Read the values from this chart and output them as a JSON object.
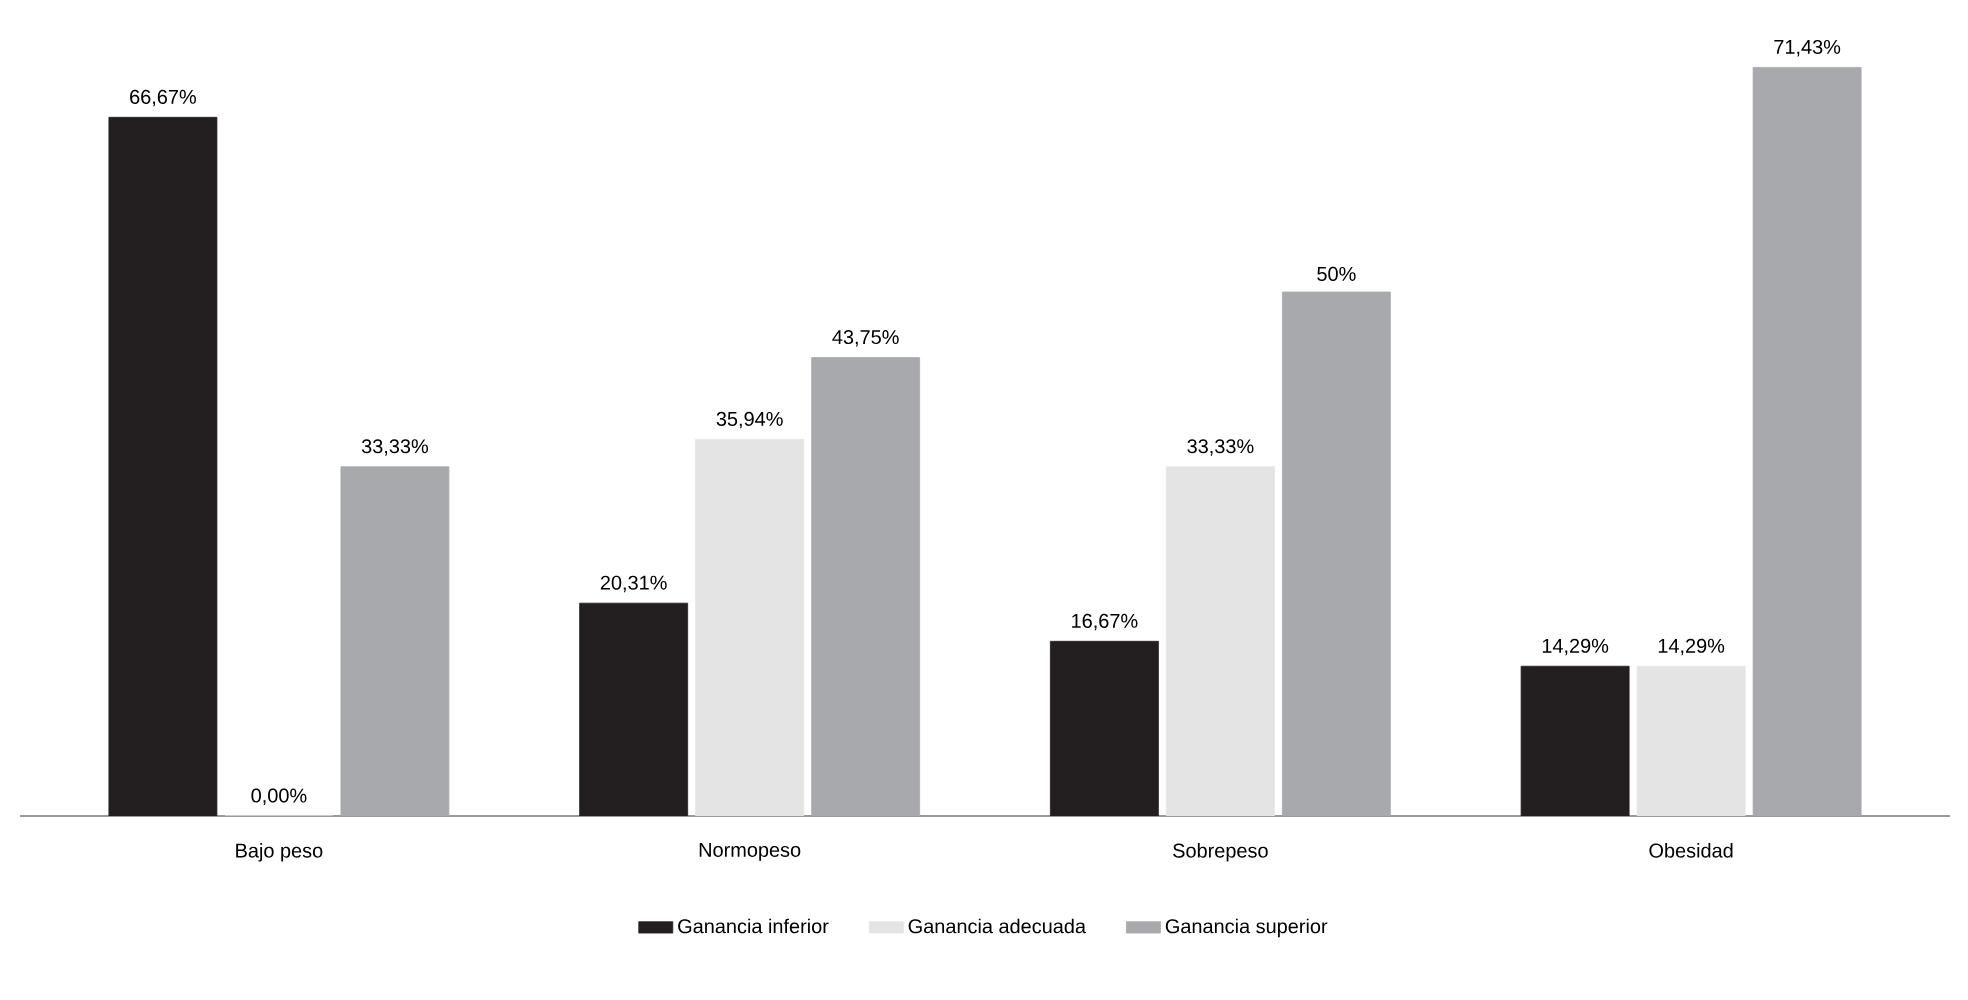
{
  "chart_data": {
    "type": "bar",
    "categories": [
      "Bajo peso",
      "Normopeso",
      "Sobrepeso",
      "Obesidad"
    ],
    "series": [
      {
        "name": "Ganancia inferior",
        "color": "#231f20",
        "values": [
          66.67,
          20.31,
          16.67,
          14.29
        ],
        "value_labels": [
          "66,67%",
          "20,31%",
          "16,67%",
          "14,29%"
        ]
      },
      {
        "name": "Ganancia adecuada",
        "color": "#e4e4e4",
        "values": [
          0.0,
          35.94,
          33.33,
          14.29
        ],
        "value_labels": [
          "0,00%",
          "35,94%",
          "33,33%",
          "14,29%"
        ]
      },
      {
        "name": "Ganancia superior",
        "color": "#a7a9ac",
        "values": [
          33.33,
          43.75,
          50,
          71.43
        ],
        "value_labels": [
          "33,33%",
          "43,75%",
          "50%",
          "71,43%"
        ]
      }
    ],
    "legend": "bottom"
  }
}
